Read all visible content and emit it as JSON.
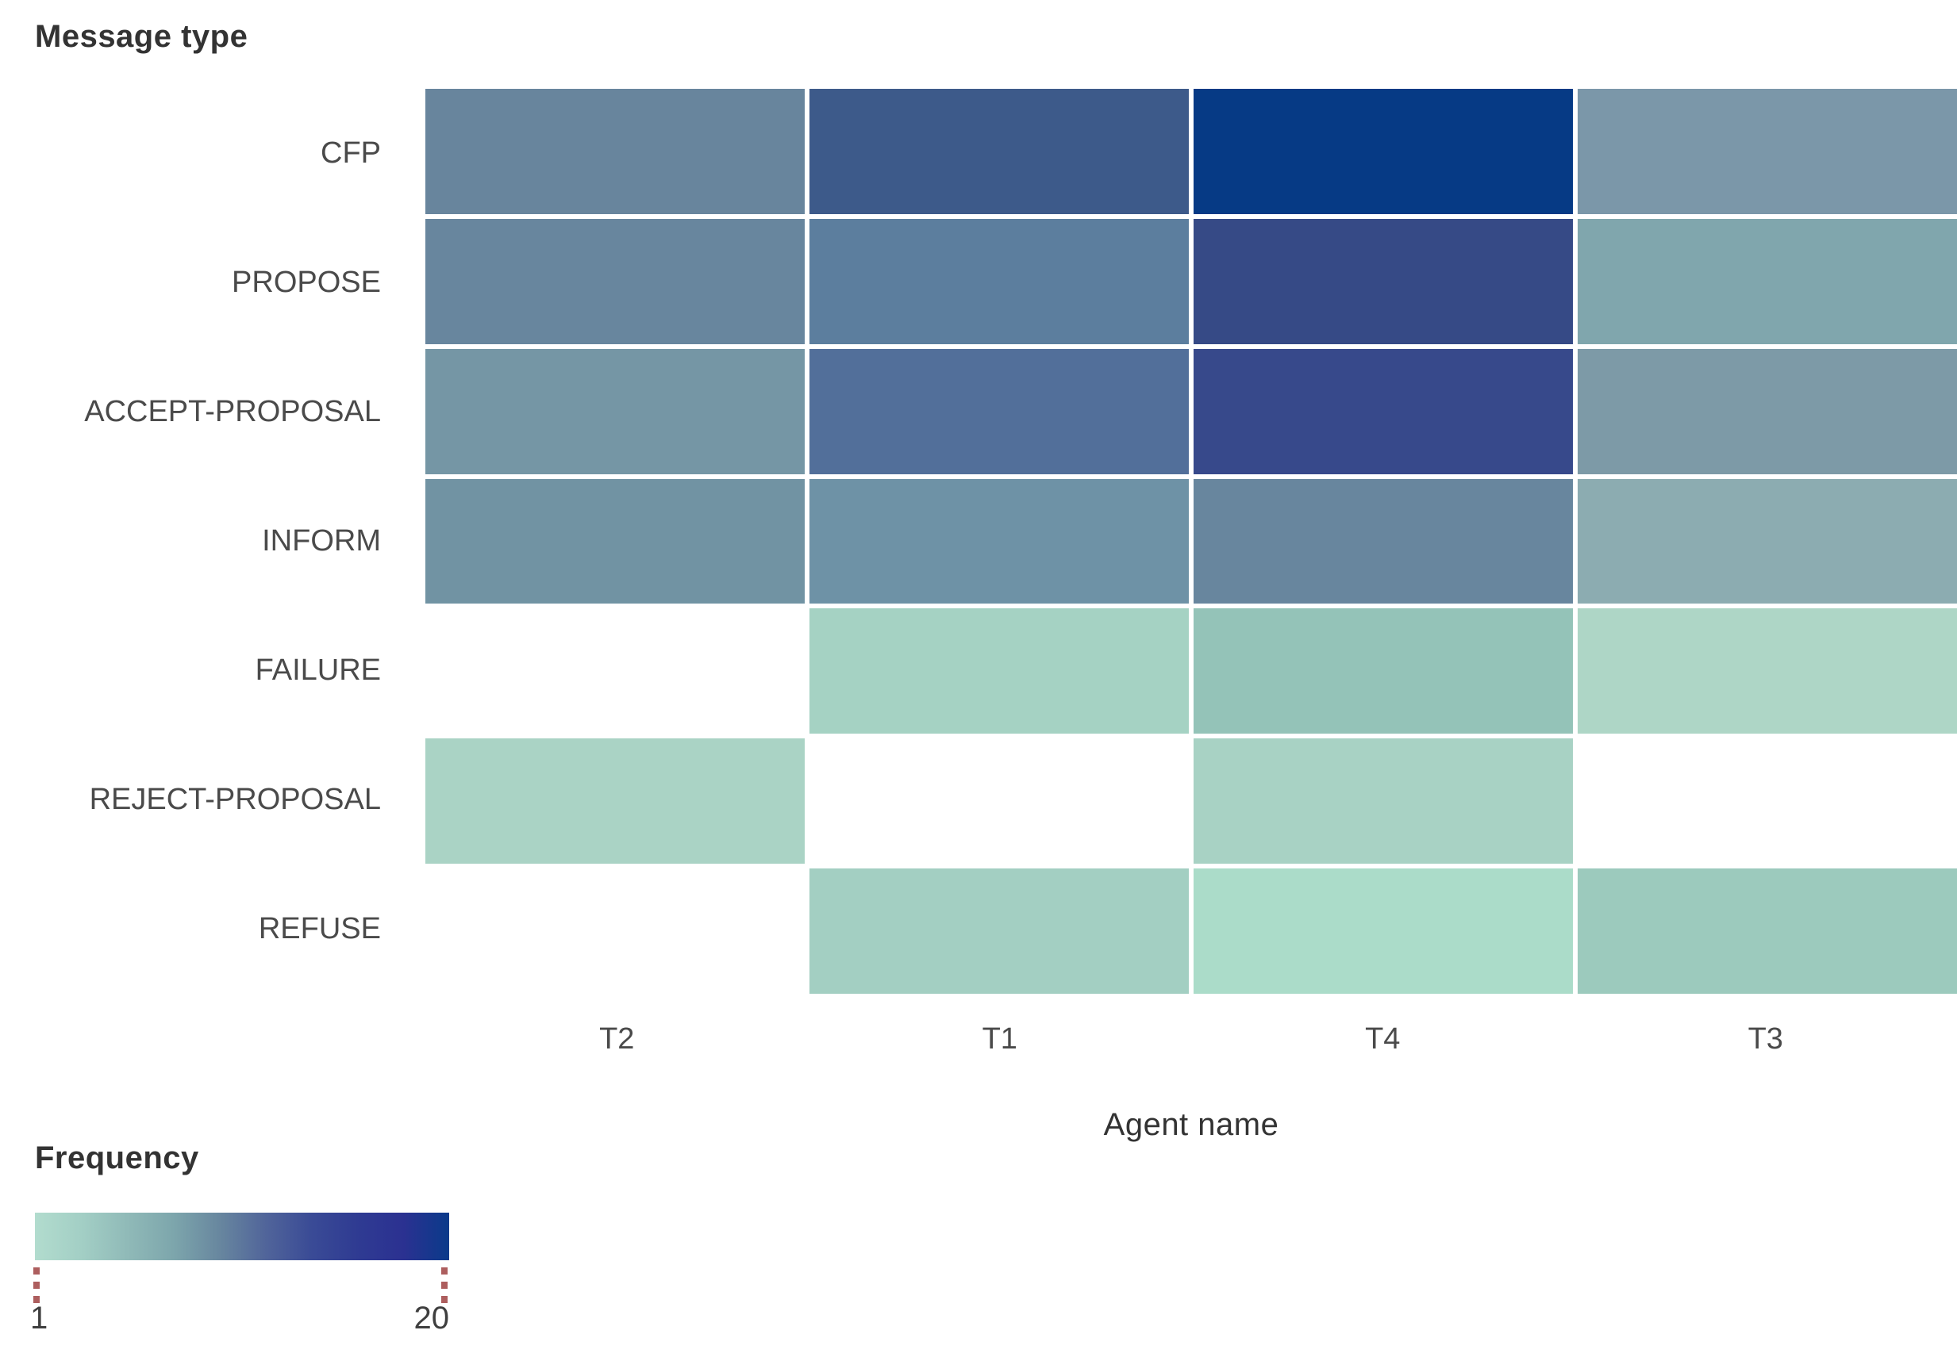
{
  "chart_data": {
    "type": "heatmap",
    "title": "",
    "xlabel": "Agent name",
    "ylabel": "Message type",
    "columns": [
      "T2",
      "T1",
      "T4",
      "T3"
    ],
    "rows": [
      "CFP",
      "PROPOSE",
      "ACCEPT-PROPOSAL",
      "INFORM",
      "FAILURE",
      "REJECT-PROPOSAL",
      "REFUSE"
    ],
    "values": [
      [
        12,
        16,
        20,
        10
      ],
      [
        12,
        13,
        18,
        9
      ],
      [
        10,
        14,
        18,
        10
      ],
      [
        11,
        11,
        12,
        8
      ],
      [
        null,
        3,
        5,
        2
      ],
      [
        2,
        null,
        2,
        null
      ],
      [
        null,
        3,
        1,
        4
      ]
    ],
    "colors": [
      [
        "#68859d",
        "#3d5a8a",
        "#063a85",
        "#7b97a9"
      ],
      [
        "#68869e",
        "#5c7e9e",
        "#364a86",
        "#80a6ad"
      ],
      [
        "#7596a5",
        "#526f9a",
        "#37498b",
        "#7d9aa7"
      ],
      [
        "#7193a3",
        "#6e92a6",
        "#68869e",
        "#8cacb1"
      ],
      [
        null,
        "#a5d2c3",
        "#94c3b8",
        "#aed6c6"
      ],
      [
        "#aad3c5",
        null,
        "#a8d2c4",
        null
      ],
      [
        null,
        "#a3cfc2",
        "#abdcc9",
        "#9ccabd"
      ]
    ],
    "empty_color": "#ffffff",
    "grid": false,
    "legend": {
      "title": "Frequency",
      "position": "bottom-left",
      "min": 1,
      "max": 20,
      "min_label": "1",
      "max_label": "20",
      "gradient": [
        "#b2dcce",
        "#a3cfc5",
        "#90bab8",
        "#7da6ac",
        "#68879f",
        "#51659a",
        "#3a4b96",
        "#2f3b92",
        "#2b3191",
        "#0a3a8a"
      ],
      "tick_color": "#ad5e5e"
    }
  }
}
